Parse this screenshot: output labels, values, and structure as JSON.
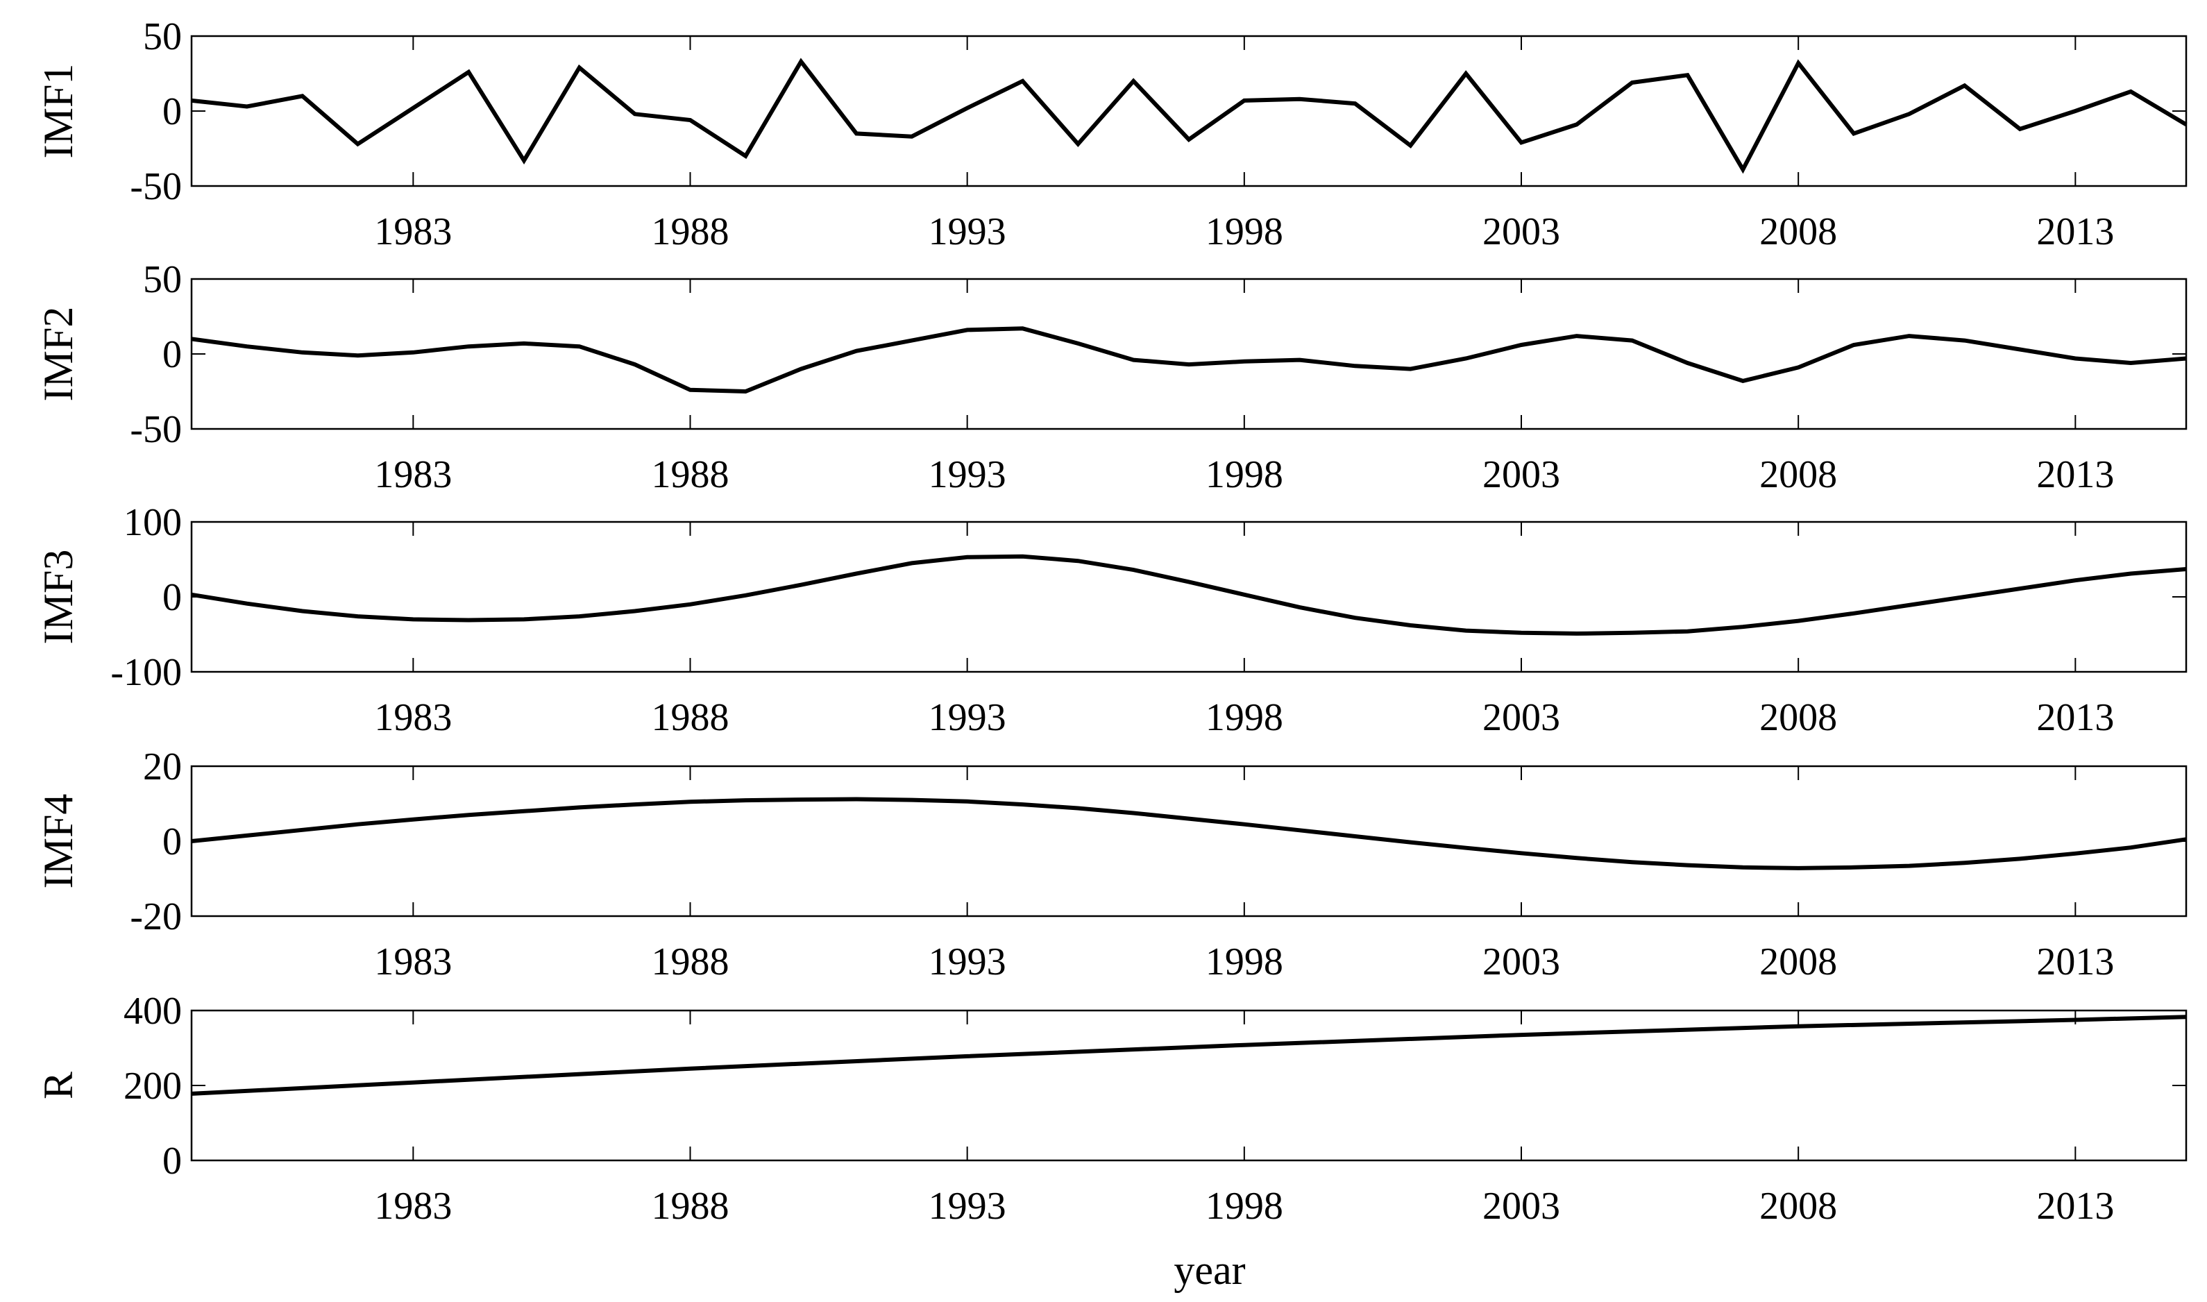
{
  "chart_data": [
    {
      "type": "line",
      "ylabel": "IMF1",
      "ylim": [
        -50,
        50
      ],
      "yticks": [
        "50",
        "0",
        "-50"
      ],
      "xlim": [
        1979,
        2015
      ],
      "xticks": [
        "1983",
        "1988",
        "1993",
        "1998",
        "2003",
        "2008",
        "2013"
      ],
      "x": [
        1979,
        1980,
        1981,
        1982,
        1983,
        1984,
        1985,
        1986,
        1987,
        1988,
        1989,
        1990,
        1991,
        1992,
        1993,
        1994,
        1995,
        1996,
        1997,
        1998,
        1999,
        2000,
        2001,
        2002,
        2003,
        2004,
        2005,
        2006,
        2007,
        2008,
        2009,
        2010,
        2011,
        2012,
        2013,
        2014,
        2015
      ],
      "values": [
        7,
        3,
        10,
        -22,
        2,
        26,
        -33,
        29,
        -2,
        -6,
        -30,
        33,
        -15,
        -17,
        2,
        20,
        -22,
        20,
        -19,
        7,
        8,
        5,
        -23,
        25,
        -21,
        -9,
        19,
        24,
        -39,
        32,
        -15,
        -2,
        17,
        -12,
        0,
        13,
        -9
      ]
    },
    {
      "type": "line",
      "ylabel": "IMF2",
      "ylim": [
        -50,
        50
      ],
      "yticks": [
        "50",
        "0",
        "-50"
      ],
      "xlim": [
        1979,
        2015
      ],
      "xticks": [
        "1983",
        "1988",
        "1993",
        "1998",
        "2003",
        "2008",
        "2013"
      ],
      "x": [
        1979,
        1980,
        1981,
        1982,
        1983,
        1984,
        1985,
        1986,
        1987,
        1988,
        1989,
        1990,
        1991,
        1992,
        1993,
        1994,
        1995,
        1996,
        1997,
        1998,
        1999,
        2000,
        2001,
        2002,
        2003,
        2004,
        2005,
        2006,
        2007,
        2008,
        2009,
        2010,
        2011,
        2012,
        2013,
        2014,
        2015
      ],
      "values": [
        10,
        5,
        1,
        -1,
        1,
        5,
        7,
        5,
        -7,
        -24,
        -25,
        -10,
        2,
        9,
        16,
        17,
        7,
        -4,
        -7,
        -5,
        -4,
        -8,
        -10,
        -3,
        6,
        12,
        9,
        -6,
        -18,
        -9,
        6,
        12,
        9,
        3,
        -3,
        -6,
        -3
      ]
    },
    {
      "type": "line",
      "ylabel": "IMF3",
      "ylim": [
        -100,
        100
      ],
      "yticks": [
        "100",
        "0",
        "-100"
      ],
      "xlim": [
        1979,
        2015
      ],
      "xticks": [
        "1983",
        "1988",
        "1993",
        "1998",
        "2003",
        "2008",
        "2013"
      ],
      "x": [
        1979,
        1980,
        1981,
        1982,
        1983,
        1984,
        1985,
        1986,
        1987,
        1988,
        1989,
        1990,
        1991,
        1992,
        1993,
        1994,
        1995,
        1996,
        1997,
        1998,
        1999,
        2000,
        2001,
        2002,
        2003,
        2004,
        2005,
        2006,
        2007,
        2008,
        2009,
        2010,
        2011,
        2012,
        2013,
        2014,
        2015
      ],
      "values": [
        3,
        -9,
        -19,
        -26,
        -30,
        -31,
        -30,
        -26,
        -19,
        -10,
        2,
        16,
        31,
        45,
        53,
        54,
        48,
        36,
        20,
        3,
        -14,
        -28,
        -38,
        -45,
        -48,
        -49,
        -48,
        -46,
        -40,
        -32,
        -22,
        -11,
        0,
        11,
        22,
        31,
        37
      ]
    },
    {
      "type": "line",
      "ylabel": "IMF4",
      "ylim": [
        -20,
        20
      ],
      "yticks": [
        "20",
        "0",
        "-20"
      ],
      "xlim": [
        1979,
        2015
      ],
      "xticks": [
        "1983",
        "1988",
        "1993",
        "1998",
        "2003",
        "2008",
        "2013"
      ],
      "x": [
        1979,
        1980,
        1981,
        1982,
        1983,
        1984,
        1985,
        1986,
        1987,
        1988,
        1989,
        1990,
        1991,
        1992,
        1993,
        1994,
        1995,
        1996,
        1997,
        1998,
        1999,
        2000,
        2001,
        2002,
        2003,
        2004,
        2005,
        2006,
        2007,
        2008,
        2009,
        2010,
        2011,
        2012,
        2013,
        2014,
        2015
      ],
      "values": [
        0,
        1.5,
        3,
        4.5,
        5.8,
        7,
        8,
        9,
        9.8,
        10.5,
        10.9,
        11.1,
        11.2,
        11,
        10.6,
        9.8,
        8.8,
        7.5,
        6,
        4.5,
        2.9,
        1.3,
        -0.3,
        -1.8,
        -3.2,
        -4.5,
        -5.6,
        -6.4,
        -7,
        -7.2,
        -7,
        -6.6,
        -5.8,
        -4.7,
        -3.3,
        -1.7,
        0.5
      ]
    },
    {
      "type": "line",
      "ylabel": "R",
      "xlabel": "year",
      "ylim": [
        0,
        400
      ],
      "yticks": [
        "400",
        "200",
        "0"
      ],
      "xlim": [
        1979,
        2015
      ],
      "xticks": [
        "1983",
        "1988",
        "1993",
        "1998",
        "2003",
        "2008",
        "2013"
      ],
      "x": [
        1979,
        1983,
        1988,
        1993,
        1998,
        2003,
        2008,
        2013,
        2015
      ],
      "values": [
        178,
        208,
        245,
        278,
        308,
        335,
        358,
        375,
        383
      ]
    }
  ]
}
